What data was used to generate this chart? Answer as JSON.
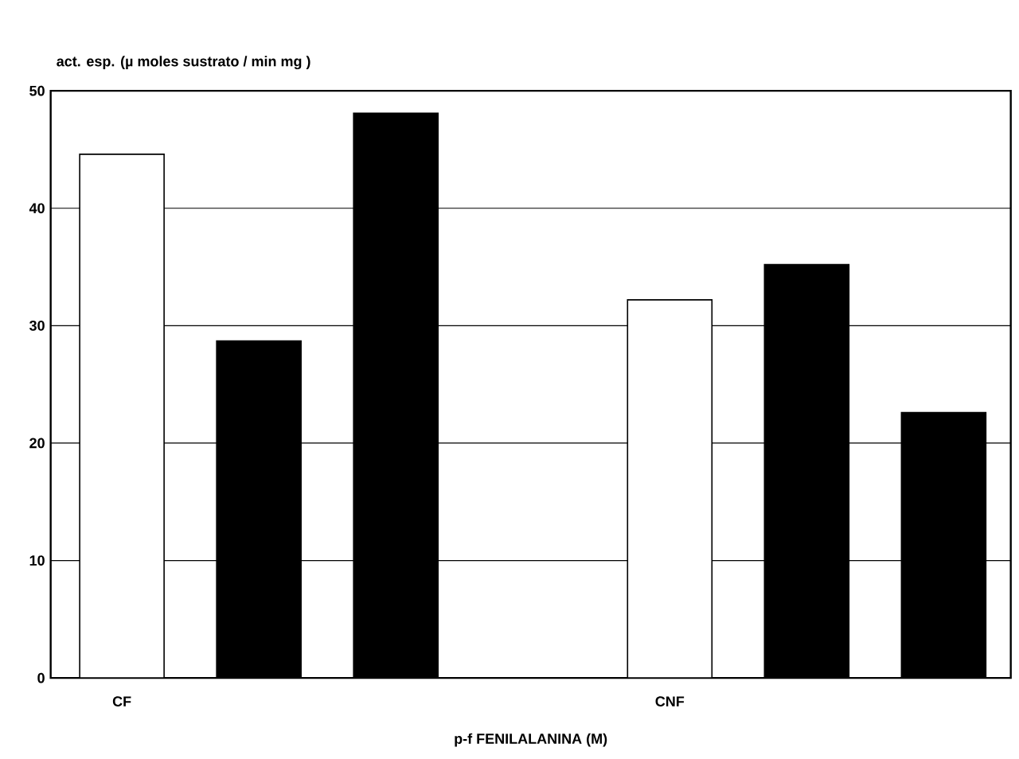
{
  "chart_data": {
    "type": "bar",
    "ylabel": "act. esp. (µ moles sustrato / min mg )",
    "xlabel": "p-f FENILALANINA (M)",
    "categories": [
      "CF",
      null,
      null,
      null,
      "CNF",
      null,
      null
    ],
    "values": [
      44.6,
      28.7,
      48.1,
      null,
      32.2,
      35.2,
      22.6
    ],
    "colors": [
      "#ffffff",
      "#000000",
      "#000000",
      null,
      "#ffffff",
      "#000000",
      "#000000"
    ],
    "ylim": [
      0,
      50
    ],
    "yticks": [
      0,
      10,
      20,
      30,
      40,
      50
    ],
    "grid": "y"
  }
}
